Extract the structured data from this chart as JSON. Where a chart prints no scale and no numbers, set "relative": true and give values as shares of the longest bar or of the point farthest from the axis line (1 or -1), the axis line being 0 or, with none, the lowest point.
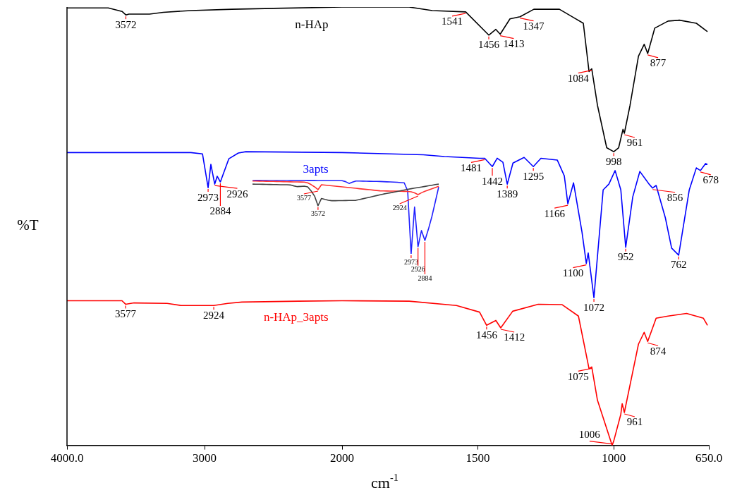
{
  "chart_data": [
    {
      "type": "line",
      "ylabel": "%T",
      "relative": true,
      "xlim": [
        4000,
        2000
      ],
      "xticks": [
        {
          "value": 4000,
          "label": "4000.0"
        },
        3000,
        2000
      ],
      "series": [
        {
          "name": "n-HAp",
          "color": "#000000",
          "x": [
            4000,
            3700,
            3600,
            3572,
            3550,
            3400,
            3300,
            3100,
            2800,
            2500,
            2000
          ],
          "values": [
            0.998,
            0.998,
            0.99,
            0.982,
            0.984,
            0.984,
            0.988,
            0.992,
            0.995,
            0.997,
            1.0
          ]
        },
        {
          "name": "3apts",
          "color": "#0000ff",
          "x": [
            4000,
            3100,
            3015,
            2974,
            2954,
            2926,
            2908,
            2885,
            2823,
            2754,
            2700,
            2000
          ],
          "values": [
            0.668,
            0.668,
            0.665,
            0.588,
            0.641,
            0.596,
            0.614,
            0.601,
            0.654,
            0.667,
            0.67,
            0.668
          ]
        },
        {
          "name": "n-HAp_3apts",
          "color": "#ff0000",
          "x": [
            4000,
            3600,
            3574,
            3513,
            3272,
            3170,
            2933,
            2831,
            2728,
            2318,
            2000
          ],
          "values": [
            0.33,
            0.33,
            0.322,
            0.325,
            0.324,
            0.319,
            0.319,
            0.324,
            0.327,
            0.329,
            0.33
          ]
        }
      ],
      "annotations": [
        {
          "text": "3572",
          "x": 3572,
          "y": 0.982
        },
        {
          "text": "2973",
          "x": 2974,
          "y": 0.588
        },
        {
          "text": "2926",
          "x": 2926,
          "y": 0.596
        },
        {
          "text": "2884",
          "x": 2885,
          "y": 0.601
        },
        {
          "text": "3577",
          "x": 3574,
          "y": 0.322
        },
        {
          "text": "2924",
          "x": 2933,
          "y": 0.319
        }
      ]
    },
    {
      "type": "line",
      "xlabel": "cm$^{-1}$",
      "relative": true,
      "xlim": [
        2000,
        650
      ],
      "xticks": [
        1500,
        1000,
        {
          "value": 650,
          "label": "650.0"
        }
      ],
      "series": [
        {
          "color": "#000000",
          "x": [
            2000,
            1753,
            1668,
            1545,
            1460,
            1434,
            1418,
            1382,
            1345,
            1294,
            1200,
            1148,
            1112,
            1091,
            1081,
            1060,
            1026,
            1000,
            982,
            966,
            961,
            940,
            909,
            888,
            875,
            849,
            800,
            758,
            696,
            655
          ],
          "values": [
            1.0,
            1.0,
            0.992,
            0.989,
            0.936,
            0.949,
            0.938,
            0.973,
            0.978,
            0.995,
            0.995,
            0.976,
            0.963,
            0.853,
            0.859,
            0.776,
            0.679,
            0.67,
            0.679,
            0.721,
            0.712,
            0.776,
            0.888,
            0.915,
            0.894,
            0.952,
            0.968,
            0.97,
            0.963,
            0.944
          ]
        },
        {
          "color": "#0000ff",
          "x": [
            2000,
            1701,
            1623,
            1494,
            1475,
            1447,
            1429,
            1408,
            1392,
            1371,
            1330,
            1296,
            1268,
            1208,
            1182,
            1169,
            1148,
            1117,
            1101,
            1094,
            1073,
            1039,
            1018,
            995,
            974,
            956,
            930,
            904,
            870,
            857,
            844,
            810,
            787,
            761,
            722,
            696,
            681,
            662,
            655
          ],
          "values": [
            0.668,
            0.663,
            0.659,
            0.655,
            0.655,
            0.636,
            0.655,
            0.646,
            0.596,
            0.644,
            0.657,
            0.636,
            0.655,
            0.651,
            0.615,
            0.551,
            0.599,
            0.487,
            0.415,
            0.439,
            0.337,
            0.583,
            0.596,
            0.627,
            0.583,
            0.452,
            0.567,
            0.625,
            0.596,
            0.587,
            0.593,
            0.519,
            0.45,
            0.434,
            0.583,
            0.633,
            0.627,
            0.643,
            0.641
          ]
        },
        {
          "color": "#ff0000",
          "x": [
            2000,
            1753,
            1579,
            1494,
            1468,
            1434,
            1416,
            1372,
            1278,
            1190,
            1130,
            1091,
            1081,
            1060,
            1006,
            1000,
            974,
            969,
            961,
            909,
            888,
            875,
            844,
            800,
            732,
            670,
            655
          ],
          "values": [
            0.33,
            0.329,
            0.319,
            0.304,
            0.274,
            0.285,
            0.268,
            0.306,
            0.322,
            0.321,
            0.295,
            0.175,
            0.179,
            0.103,
            0.0,
            0.01,
            0.071,
            0.095,
            0.075,
            0.231,
            0.258,
            0.237,
            0.29,
            0.295,
            0.301,
            0.29,
            0.274
          ]
        }
      ],
      "annotations": [
        {
          "text": "1541",
          "x": 1545,
          "y": 0.989
        },
        {
          "text": "1456",
          "x": 1460,
          "y": 0.936
        },
        {
          "text": "1413",
          "x": 1418,
          "y": 0.938
        },
        {
          "text": "1347",
          "x": 1345,
          "y": 0.978
        },
        {
          "text": "1084",
          "x": 1081,
          "y": 0.859
        },
        {
          "text": "998",
          "x": 1000,
          "y": 0.67
        },
        {
          "text": "961",
          "x": 961,
          "y": 0.712
        },
        {
          "text": "877",
          "x": 875,
          "y": 0.894
        },
        {
          "text": "1481",
          "x": 1475,
          "y": 0.655
        },
        {
          "text": "1442",
          "x": 1447,
          "y": 0.636
        },
        {
          "text": "1389",
          "x": 1392,
          "y": 0.596
        },
        {
          "text": "1295",
          "x": 1296,
          "y": 0.636
        },
        {
          "text": "1166",
          "x": 1169,
          "y": 0.551
        },
        {
          "text": "1100",
          "x": 1101,
          "y": 0.415
        },
        {
          "text": "1072",
          "x": 1073,
          "y": 0.337
        },
        {
          "text": "952",
          "x": 956,
          "y": 0.452
        },
        {
          "text": "856",
          "x": 857,
          "y": 0.587
        },
        {
          "text": "762",
          "x": 761,
          "y": 0.434
        },
        {
          "text": "678",
          "x": 681,
          "y": 0.627
        },
        {
          "text": "1456",
          "x": 1468,
          "y": 0.274
        },
        {
          "text": "1412",
          "x": 1416,
          "y": 0.268
        },
        {
          "text": "1075",
          "x": 1081,
          "y": 0.179
        },
        {
          "text": "1006",
          "x": 1006,
          "y": 0.0
        },
        {
          "text": "961",
          "x": 961,
          "y": 0.075
        },
        {
          "text": "874",
          "x": 875,
          "y": 0.237
        }
      ]
    },
    {
      "type": "line",
      "relative": true,
      "tick_labels": false,
      "categories": [
        null,
        null,
        null,
        null,
        null,
        null,
        null,
        null,
        null,
        null,
        null,
        null,
        null,
        null,
        null,
        null,
        null,
        null,
        null,
        null,
        null,
        null,
        null,
        null,
        null,
        null,
        null,
        null,
        null,
        null,
        null,
        null,
        null,
        null,
        null,
        null,
        null,
        null,
        null,
        null,
        null,
        null,
        null,
        null,
        null,
        null,
        null,
        null,
        null,
        null,
        null,
        null,
        null,
        null,
        null
      ],
      "series": [
        {
          "color": "#404040",
          "values": [
            0.942,
            0.941,
            0.94,
            0.939,
            0.938,
            0.937,
            0.936,
            0.935,
            0.934,
            0.933,
            0.933,
            0.93,
            0.918,
            0.908,
            0.911,
            0.915,
            0.905,
            0.85,
            0.78,
            0.65,
            0.748,
            0.735,
            0.724,
            0.718,
            0.718,
            0.719,
            0.719,
            0.72,
            0.721,
            0.722,
            0.723,
            0.733,
            0.744,
            0.755,
            0.765,
            0.776,
            0.787,
            0.798,
            0.808,
            0.816,
            0.825,
            0.834,
            0.843,
            0.852,
            0.862,
            0.872,
            0.88,
            0.888,
            0.896,
            0.903,
            0.911,
            0.919,
            0.927,
            0.935,
            0.942
          ]
        },
        {
          "color": "#ff3030",
          "values": [
            0.984,
            0.983,
            0.982,
            0.981,
            0.98,
            0.979,
            0.978,
            0.977,
            0.976,
            0.975,
            0.974,
            0.973,
            0.972,
            0.971,
            0.97,
            0.969,
            0.96,
            0.935,
            0.905,
            0.867,
            0.934,
            0.929,
            0.924,
            0.919,
            0.914,
            0.91,
            0.905,
            0.9,
            0.895,
            0.89,
            0.885,
            0.88,
            0.875,
            0.87,
            0.866,
            0.861,
            0.856,
            0.851,
            0.85,
            0.849,
            0.848,
            0.847,
            0.846,
            0.845,
            0.844,
            0.843,
            0.838,
            0.823,
            0.8,
            0.825,
            0.845,
            0.862,
            0.879,
            0.896,
            0.913
          ]
        },
        {
          "color": "#2020ff",
          "values": [
            1.0,
            0.999,
            0.999,
            0.998,
            0.998,
            0.997,
            0.997,
            0.996,
            0.996,
            0.995,
            0.995,
            0.994,
            0.994,
            0.993,
            0.993,
            0.993,
            0.992,
            0.992,
            0.992,
            0.991,
            0.991,
            0.991,
            0.99,
            0.99,
            0.99,
            0.99,
            0.988,
            0.975,
            0.951,
            0.968,
            0.984,
            0.983,
            0.982,
            0.981,
            0.98,
            0.979,
            0.978,
            0.977,
            0.975,
            0.973,
            0.971,
            0.969,
            0.966,
            0.962,
            0.959,
            0.85,
            0.0,
            0.633,
            0.097,
            0.315,
            0.181,
            0.33,
            0.5,
            0.7,
            0.903
          ]
        }
      ],
      "annotations": [
        {
          "text": "3577",
          "y": 0.867
        },
        {
          "text": "3572",
          "y": 0.65
        },
        {
          "text": "2973",
          "y": 0.0
        },
        {
          "text": "2924",
          "y": 0.8
        },
        {
          "text": "2926",
          "y": 0.097
        },
        {
          "text": "2884",
          "y": 0.181
        }
      ]
    }
  ]
}
